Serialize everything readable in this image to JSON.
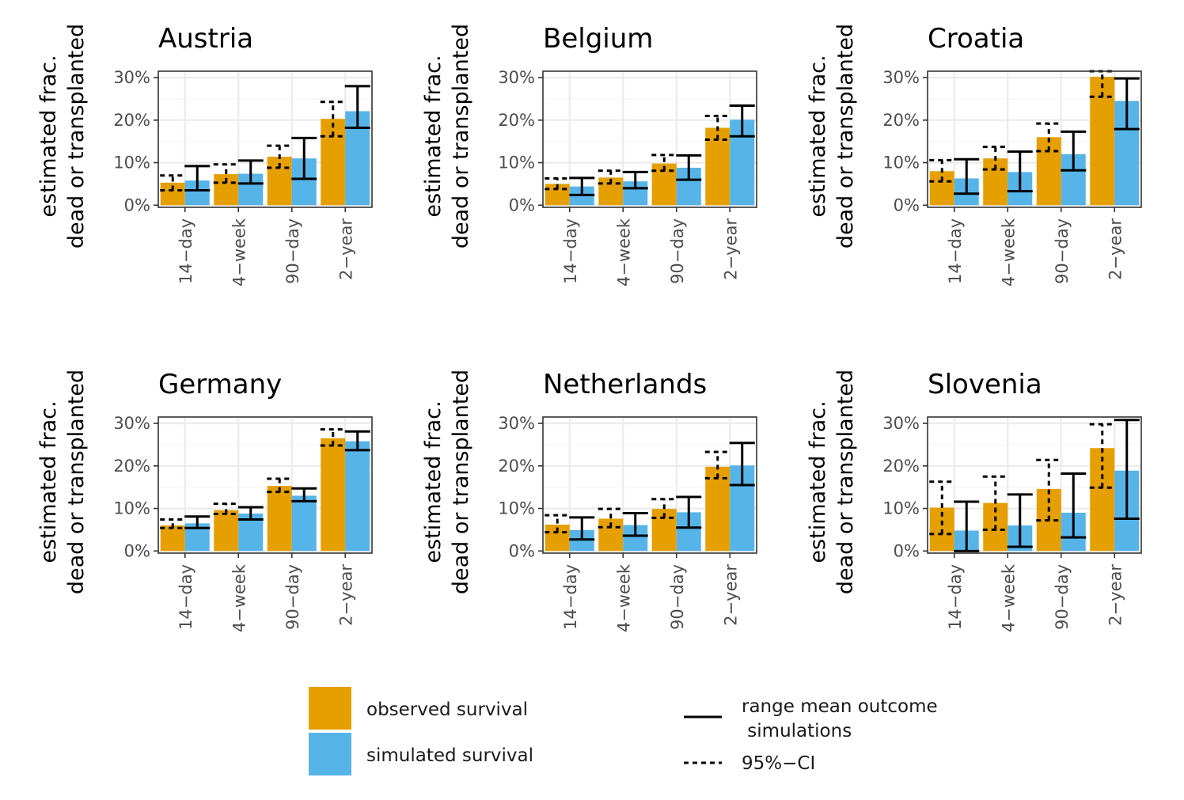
{
  "colors": {
    "observed": "#E69F00",
    "simulated": "#56B4E9",
    "grid_major": "#ebebeb",
    "grid_minor": "#f4f4f4",
    "panel_border": "#333333",
    "tick_text": "#4d4d4d"
  },
  "chart_data": {
    "type": "bar",
    "facet": "country",
    "ylabel_line1": "estimated frac.",
    "ylabel_line2": "dead or transplanted",
    "categories": [
      "14−day",
      "4−week",
      "90−day",
      "2−year"
    ],
    "yticks": [
      0,
      10,
      20,
      30
    ],
    "ytick_labels": [
      "0%",
      "10%",
      "20%",
      "30%"
    ],
    "ylim": [
      -0.5,
      31.5
    ],
    "grid": true,
    "panels": [
      {
        "title": "Austria",
        "observed": [
          5.3,
          7.3,
          11.4,
          20.3
        ],
        "simulated": [
          5.8,
          7.4,
          11.0,
          22.1
        ],
        "ci95": [
          [
            3.5,
            7.0
          ],
          [
            5.3,
            9.6
          ],
          [
            8.8,
            14.0
          ],
          [
            16.2,
            24.3
          ]
        ],
        "sim_range": [
          [
            3.5,
            9.2
          ],
          [
            5.1,
            10.5
          ],
          [
            6.2,
            15.8
          ],
          [
            18.2,
            28.0
          ]
        ]
      },
      {
        "title": "Belgium",
        "observed": [
          5.0,
          6.5,
          9.8,
          18.2
        ],
        "simulated": [
          4.4,
          5.6,
          8.8,
          20.1
        ],
        "ci95": [
          [
            3.8,
            6.3
          ],
          [
            5.1,
            8.1
          ],
          [
            8.1,
            11.8
          ],
          [
            15.4,
            21.0
          ]
        ],
        "sim_range": [
          [
            2.4,
            6.4
          ],
          [
            4.0,
            7.8
          ],
          [
            6.0,
            11.7
          ],
          [
            16.2,
            23.4
          ]
        ]
      },
      {
        "title": "Croatia",
        "observed": [
          8.0,
          11.0,
          16.0,
          30.2
        ],
        "simulated": [
          6.3,
          7.8,
          12.0,
          24.5
        ],
        "ci95": [
          [
            5.6,
            10.6
          ],
          [
            8.4,
            13.7
          ],
          [
            12.7,
            19.2
          ],
          [
            25.5,
            31.5
          ]
        ],
        "sim_range": [
          [
            2.7,
            10.8
          ],
          [
            3.3,
            12.6
          ],
          [
            8.2,
            17.3
          ],
          [
            17.9,
            29.8
          ]
        ]
      },
      {
        "title": "Germany",
        "observed": [
          6.0,
          9.6,
          15.3,
          26.5
        ],
        "simulated": [
          6.5,
          8.8,
          13.0,
          25.8
        ],
        "ci95": [
          [
            5.4,
            7.4
          ],
          [
            8.7,
            11.1
          ],
          [
            13.9,
            17.0
          ],
          [
            24.8,
            28.6
          ]
        ],
        "sim_range": [
          [
            5.4,
            8.1
          ],
          [
            7.4,
            10.3
          ],
          [
            11.7,
            14.7
          ],
          [
            23.7,
            28.1
          ]
        ]
      },
      {
        "title": "Netherlands",
        "observed": [
          6.2,
          7.6,
          9.9,
          19.8
        ],
        "simulated": [
          4.9,
          6.1,
          9.1,
          20.1
        ],
        "ci95": [
          [
            4.4,
            8.4
          ],
          [
            5.6,
            9.9
          ],
          [
            7.8,
            12.2
          ],
          [
            17.1,
            23.3
          ]
        ],
        "sim_range": [
          [
            2.7,
            7.9
          ],
          [
            3.6,
            8.9
          ],
          [
            5.5,
            12.7
          ],
          [
            15.5,
            25.4
          ]
        ]
      },
      {
        "title": "Slovenia",
        "observed": [
          10.2,
          11.3,
          14.6,
          24.2
        ],
        "simulated": [
          4.8,
          6.0,
          9.0,
          18.9
        ],
        "ci95": [
          [
            4.0,
            16.3
          ],
          [
            5.0,
            17.5
          ],
          [
            7.2,
            21.4
          ],
          [
            14.9,
            29.8
          ]
        ],
        "sim_range": [
          [
            0.0,
            11.6
          ],
          [
            1.0,
            13.3
          ],
          [
            3.2,
            18.2
          ],
          [
            7.6,
            30.8
          ]
        ]
      }
    ],
    "legend": {
      "observed_label": "observed survival",
      "simulated_label": "simulated survival",
      "range_label_line1": "range mean outcome",
      "range_label_line2": " simulations",
      "ci_label": "95%−CI"
    }
  }
}
